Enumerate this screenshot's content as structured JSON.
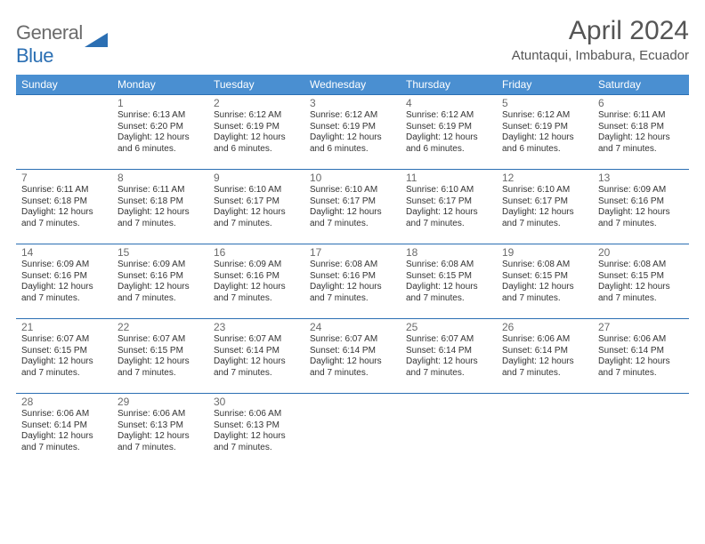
{
  "header": {
    "logo_general": "General",
    "logo_blue": "Blue",
    "title": "April 2024",
    "subtitle": "Atuntaqui, Imbabura, Ecuador"
  },
  "colors": {
    "header_bg": "#4a8fd1",
    "border": "#2b6fb3",
    "text_gray": "#6b6b6b",
    "title_gray": "#555555"
  },
  "weekdays": [
    "Sunday",
    "Monday",
    "Tuesday",
    "Wednesday",
    "Thursday",
    "Friday",
    "Saturday"
  ],
  "days": [
    {
      "n": "1",
      "sr": "Sunrise: 6:13 AM",
      "ss": "Sunset: 6:20 PM",
      "d1": "Daylight: 12 hours",
      "d2": "and 6 minutes."
    },
    {
      "n": "2",
      "sr": "Sunrise: 6:12 AM",
      "ss": "Sunset: 6:19 PM",
      "d1": "Daylight: 12 hours",
      "d2": "and 6 minutes."
    },
    {
      "n": "3",
      "sr": "Sunrise: 6:12 AM",
      "ss": "Sunset: 6:19 PM",
      "d1": "Daylight: 12 hours",
      "d2": "and 6 minutes."
    },
    {
      "n": "4",
      "sr": "Sunrise: 6:12 AM",
      "ss": "Sunset: 6:19 PM",
      "d1": "Daylight: 12 hours",
      "d2": "and 6 minutes."
    },
    {
      "n": "5",
      "sr": "Sunrise: 6:12 AM",
      "ss": "Sunset: 6:19 PM",
      "d1": "Daylight: 12 hours",
      "d2": "and 6 minutes."
    },
    {
      "n": "6",
      "sr": "Sunrise: 6:11 AM",
      "ss": "Sunset: 6:18 PM",
      "d1": "Daylight: 12 hours",
      "d2": "and 7 minutes."
    },
    {
      "n": "7",
      "sr": "Sunrise: 6:11 AM",
      "ss": "Sunset: 6:18 PM",
      "d1": "Daylight: 12 hours",
      "d2": "and 7 minutes."
    },
    {
      "n": "8",
      "sr": "Sunrise: 6:11 AM",
      "ss": "Sunset: 6:18 PM",
      "d1": "Daylight: 12 hours",
      "d2": "and 7 minutes."
    },
    {
      "n": "9",
      "sr": "Sunrise: 6:10 AM",
      "ss": "Sunset: 6:17 PM",
      "d1": "Daylight: 12 hours",
      "d2": "and 7 minutes."
    },
    {
      "n": "10",
      "sr": "Sunrise: 6:10 AM",
      "ss": "Sunset: 6:17 PM",
      "d1": "Daylight: 12 hours",
      "d2": "and 7 minutes."
    },
    {
      "n": "11",
      "sr": "Sunrise: 6:10 AM",
      "ss": "Sunset: 6:17 PM",
      "d1": "Daylight: 12 hours",
      "d2": "and 7 minutes."
    },
    {
      "n": "12",
      "sr": "Sunrise: 6:10 AM",
      "ss": "Sunset: 6:17 PM",
      "d1": "Daylight: 12 hours",
      "d2": "and 7 minutes."
    },
    {
      "n": "13",
      "sr": "Sunrise: 6:09 AM",
      "ss": "Sunset: 6:16 PM",
      "d1": "Daylight: 12 hours",
      "d2": "and 7 minutes."
    },
    {
      "n": "14",
      "sr": "Sunrise: 6:09 AM",
      "ss": "Sunset: 6:16 PM",
      "d1": "Daylight: 12 hours",
      "d2": "and 7 minutes."
    },
    {
      "n": "15",
      "sr": "Sunrise: 6:09 AM",
      "ss": "Sunset: 6:16 PM",
      "d1": "Daylight: 12 hours",
      "d2": "and 7 minutes."
    },
    {
      "n": "16",
      "sr": "Sunrise: 6:09 AM",
      "ss": "Sunset: 6:16 PM",
      "d1": "Daylight: 12 hours",
      "d2": "and 7 minutes."
    },
    {
      "n": "17",
      "sr": "Sunrise: 6:08 AM",
      "ss": "Sunset: 6:16 PM",
      "d1": "Daylight: 12 hours",
      "d2": "and 7 minutes."
    },
    {
      "n": "18",
      "sr": "Sunrise: 6:08 AM",
      "ss": "Sunset: 6:15 PM",
      "d1": "Daylight: 12 hours",
      "d2": "and 7 minutes."
    },
    {
      "n": "19",
      "sr": "Sunrise: 6:08 AM",
      "ss": "Sunset: 6:15 PM",
      "d1": "Daylight: 12 hours",
      "d2": "and 7 minutes."
    },
    {
      "n": "20",
      "sr": "Sunrise: 6:08 AM",
      "ss": "Sunset: 6:15 PM",
      "d1": "Daylight: 12 hours",
      "d2": "and 7 minutes."
    },
    {
      "n": "21",
      "sr": "Sunrise: 6:07 AM",
      "ss": "Sunset: 6:15 PM",
      "d1": "Daylight: 12 hours",
      "d2": "and 7 minutes."
    },
    {
      "n": "22",
      "sr": "Sunrise: 6:07 AM",
      "ss": "Sunset: 6:15 PM",
      "d1": "Daylight: 12 hours",
      "d2": "and 7 minutes."
    },
    {
      "n": "23",
      "sr": "Sunrise: 6:07 AM",
      "ss": "Sunset: 6:14 PM",
      "d1": "Daylight: 12 hours",
      "d2": "and 7 minutes."
    },
    {
      "n": "24",
      "sr": "Sunrise: 6:07 AM",
      "ss": "Sunset: 6:14 PM",
      "d1": "Daylight: 12 hours",
      "d2": "and 7 minutes."
    },
    {
      "n": "25",
      "sr": "Sunrise: 6:07 AM",
      "ss": "Sunset: 6:14 PM",
      "d1": "Daylight: 12 hours",
      "d2": "and 7 minutes."
    },
    {
      "n": "26",
      "sr": "Sunrise: 6:06 AM",
      "ss": "Sunset: 6:14 PM",
      "d1": "Daylight: 12 hours",
      "d2": "and 7 minutes."
    },
    {
      "n": "27",
      "sr": "Sunrise: 6:06 AM",
      "ss": "Sunset: 6:14 PM",
      "d1": "Daylight: 12 hours",
      "d2": "and 7 minutes."
    },
    {
      "n": "28",
      "sr": "Sunrise: 6:06 AM",
      "ss": "Sunset: 6:14 PM",
      "d1": "Daylight: 12 hours",
      "d2": "and 7 minutes."
    },
    {
      "n": "29",
      "sr": "Sunrise: 6:06 AM",
      "ss": "Sunset: 6:13 PM",
      "d1": "Daylight: 12 hours",
      "d2": "and 7 minutes."
    },
    {
      "n": "30",
      "sr": "Sunrise: 6:06 AM",
      "ss": "Sunset: 6:13 PM",
      "d1": "Daylight: 12 hours",
      "d2": "and 7 minutes."
    }
  ],
  "layout": {
    "first_weekday_offset": 1,
    "rows": 5,
    "cols": 7
  }
}
